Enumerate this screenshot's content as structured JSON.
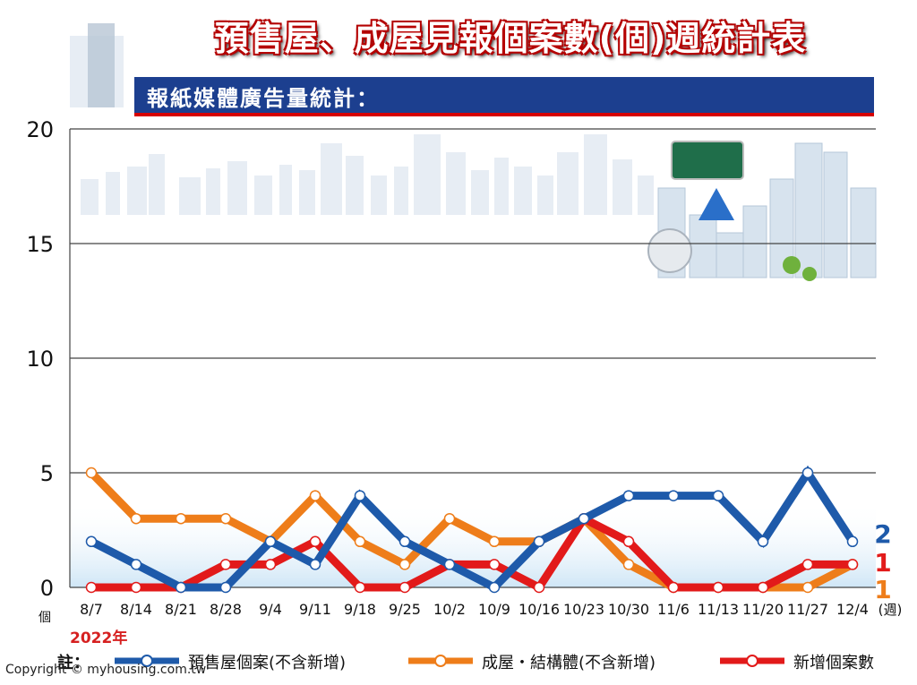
{
  "header": {
    "title": "預售屋、成屋見報個案數(個)週統計表",
    "subtitle": "報紙媒體廣告量統計："
  },
  "footer": {
    "copyright": "Copyright © myhousing.com.tw",
    "year_note": "2022年",
    "legend_prefix": "註："
  },
  "colors": {
    "presale": "#1e5aaa",
    "existing": "#ee7d1a",
    "new": "#e21a1a",
    "title_bar": "#1c3f8f"
  },
  "end_labels": {
    "presale": "2",
    "new": "1",
    "existing": "1"
  },
  "chart_data": {
    "type": "line",
    "x": [
      "8/7",
      "8/14",
      "8/21",
      "8/28",
      "9/4",
      "9/11",
      "9/18",
      "9/25",
      "10/2",
      "10/9",
      "10/16",
      "10/23",
      "10/30",
      "11/6",
      "11/13",
      "11/20",
      "11/27",
      "12/4"
    ],
    "ylim": [
      0,
      20
    ],
    "yticks": [
      0,
      5,
      10,
      15,
      20
    ],
    "yticklabels": [
      "0",
      "5",
      "10",
      "15",
      "20"
    ],
    "ylabel": "個",
    "xlabel": "(週)",
    "grid": true,
    "series": [
      {
        "name": "預售屋個案(不含新增)",
        "color": "#1e5aaa",
        "values": [
          2,
          1,
          0,
          0,
          2,
          1,
          4,
          2,
          1,
          0,
          2,
          3,
          4,
          4,
          4,
          2,
          5,
          2
        ]
      },
      {
        "name": "成屋・結構體(不含新增)",
        "color": "#ee7d1a",
        "values": [
          5,
          3,
          3,
          3,
          2,
          4,
          2,
          1,
          3,
          2,
          2,
          3,
          1,
          0,
          0,
          0,
          0,
          1
        ]
      },
      {
        "name": "新增個案數",
        "color": "#e21a1a",
        "values": [
          0,
          0,
          0,
          1,
          1,
          2,
          0,
          0,
          1,
          1,
          0,
          3,
          2,
          0,
          0,
          0,
          1,
          1
        ]
      }
    ]
  }
}
